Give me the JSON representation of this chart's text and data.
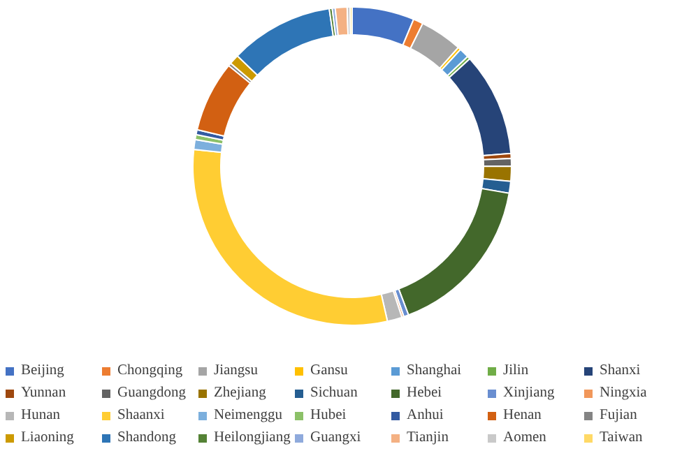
{
  "chart_data": {
    "type": "donut",
    "legend": "bottom",
    "categories": [
      "Beijing",
      "Chongqing",
      "Jiangsu",
      "Gansu",
      "Shanghai",
      "Jilin",
      "Shanxi",
      "Yunnan",
      "Guangdong",
      "Zhejiang",
      "Sichuan",
      "Hebei",
      "Xinjiang",
      "Ningxia",
      "Hunan",
      "Shaanxi",
      "Neimenggu",
      "Hubei",
      "Anhui",
      "Henan",
      "Fujian",
      "Liaoning",
      "Shandong",
      "Heilongjiang",
      "Guangxi",
      "Tianjin",
      "Aomen",
      "Taiwan"
    ],
    "values": [
      6.3,
      1,
      4.3,
      0.3,
      1,
      0.3,
      10.5,
      0.5,
      0.8,
      1.5,
      1.2,
      16.5,
      0.5,
      0.2,
      1.5,
      30.2,
      1,
      0.5,
      0.5,
      7.2,
      0.3,
      1,
      10.5,
      0.3,
      0.3,
      1.2,
      0.3,
      0.2
    ],
    "colors": [
      "#4472c4",
      "#ed7d31",
      "#a5a5a5",
      "#ffc000",
      "#5b9bd5",
      "#70ad47",
      "#264478",
      "#9e480e",
      "#636363",
      "#997300",
      "#255e91",
      "#43682b",
      "#698ed0",
      "#f1975a",
      "#b7b7b7",
      "#ffcd33",
      "#7cafdd",
      "#8cc168",
      "#335aa1",
      "#d26012",
      "#848484",
      "#cc9a00",
      "#2e75b6",
      "#548235",
      "#8faadc",
      "#f4b183",
      "#c9c9c9",
      "#ffd966"
    ]
  }
}
